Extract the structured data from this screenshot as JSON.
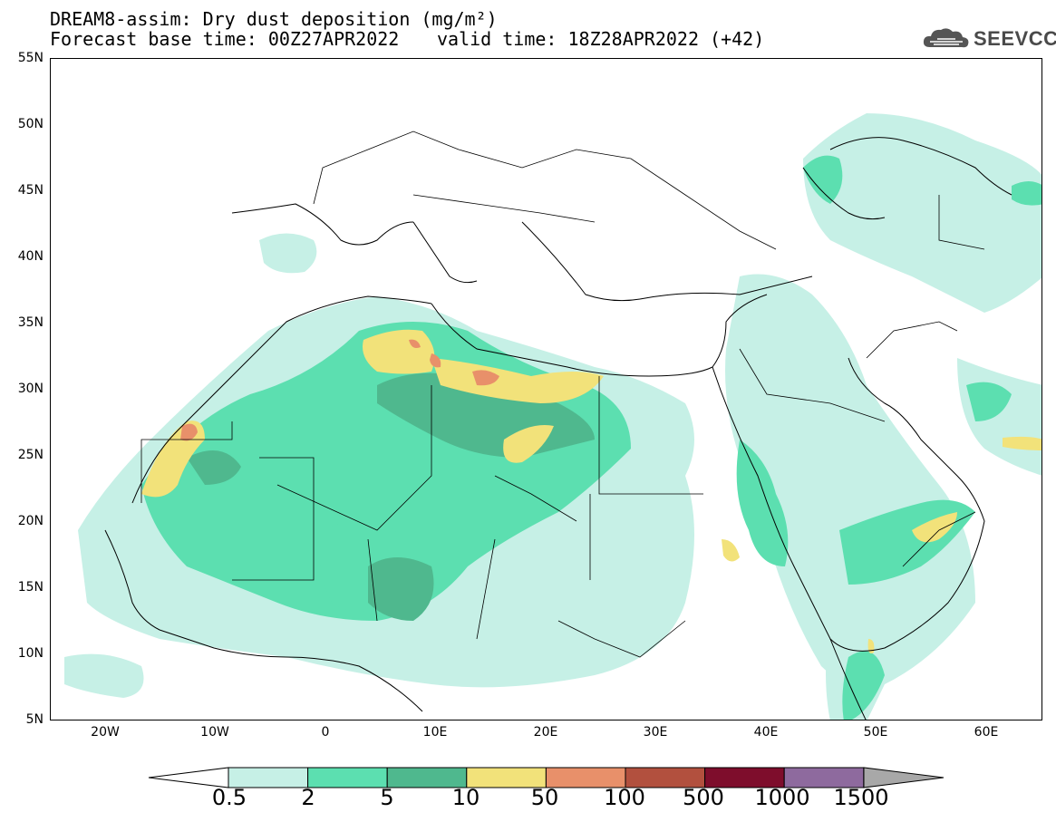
{
  "header": {
    "title_line1": "DREAM8-assim: Dry dust deposition (mg/m²)",
    "title_line2": "Forecast base time: 00Z27APR2022",
    "valid_time": "valid time: 18Z28APR2022 (+42)",
    "logo_text": "SEEVCCC",
    "logo_icon": "cloud-icon"
  },
  "map": {
    "lat_labels": [
      "55N",
      "50N",
      "45N",
      "40N",
      "35N",
      "30N",
      "25N",
      "20N",
      "15N",
      "10N",
      "5N"
    ],
    "lon_labels": [
      "20W",
      "10W",
      "0",
      "10E",
      "20E",
      "30E",
      "40E",
      "50E",
      "60E"
    ]
  },
  "colorbar": {
    "labels": [
      "0.5",
      "2",
      "5",
      "10",
      "50",
      "100",
      "500",
      "1000",
      "1500"
    ],
    "colors": [
      "#c6f0e6",
      "#5cdfb0",
      "#4fb88e",
      "#f2e27a",
      "#e8906a",
      "#b2503e",
      "#7e0d2c",
      "#8e6a9e",
      "#a8a8a8"
    ],
    "under_color": "#ffffff",
    "over_color": "#a8a8a8"
  }
}
